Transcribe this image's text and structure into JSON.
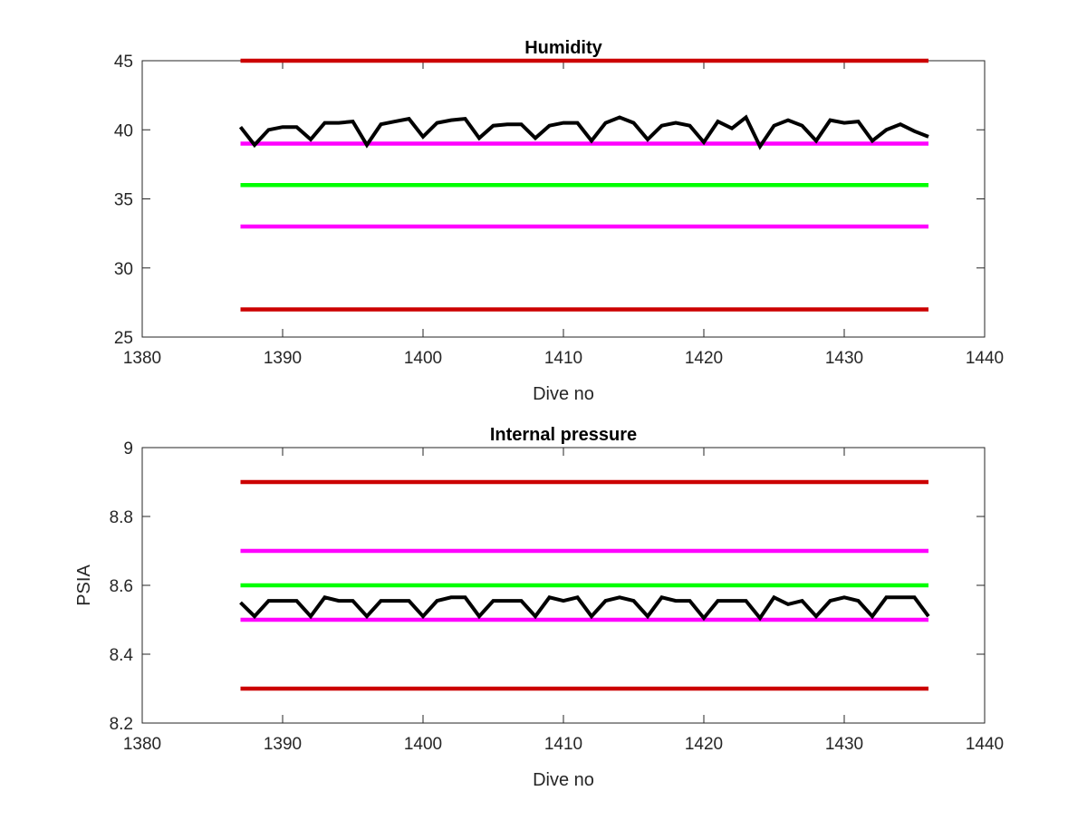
{
  "chart_data": [
    {
      "type": "line",
      "title": "Humidity",
      "xlabel": "Dive no",
      "ylabel": "",
      "xlim": [
        1380,
        1440
      ],
      "ylim": [
        25,
        45
      ],
      "xticks": [
        1380,
        1390,
        1400,
        1410,
        1420,
        1430,
        1440
      ],
      "yticks": [
        25,
        30,
        35,
        40,
        45
      ],
      "grid": false,
      "legend": "none",
      "series": [
        {
          "color": "#cc0000",
          "x": [
            1387,
            1436
          ],
          "y": [
            45,
            45
          ]
        },
        {
          "color": "#ff00ff",
          "x": [
            1387,
            1436
          ],
          "y": [
            39,
            39
          ]
        },
        {
          "color": "#00ff00",
          "x": [
            1387,
            1436
          ],
          "y": [
            36,
            36
          ]
        },
        {
          "color": "#ff00ff",
          "x": [
            1387,
            1436
          ],
          "y": [
            33,
            33
          ]
        },
        {
          "color": "#cc0000",
          "x": [
            1387,
            1436
          ],
          "y": [
            27,
            27
          ]
        },
        {
          "color": "#000000",
          "x": [
            1387,
            1388,
            1389,
            1390,
            1391,
            1392,
            1393,
            1394,
            1395,
            1396,
            1397,
            1398,
            1399,
            1400,
            1401,
            1402,
            1403,
            1404,
            1405,
            1406,
            1407,
            1408,
            1409,
            1410,
            1411,
            1412,
            1413,
            1414,
            1415,
            1416,
            1417,
            1418,
            1419,
            1420,
            1421,
            1422,
            1423,
            1424,
            1425,
            1426,
            1427,
            1428,
            1429,
            1430,
            1431,
            1432,
            1433,
            1434,
            1435,
            1436
          ],
          "y": [
            40.2,
            38.9,
            40.0,
            40.2,
            40.2,
            39.3,
            40.5,
            40.5,
            40.6,
            38.9,
            40.4,
            40.6,
            40.8,
            39.5,
            40.5,
            40.7,
            40.8,
            39.4,
            40.3,
            40.4,
            40.4,
            39.4,
            40.3,
            40.5,
            40.5,
            39.2,
            40.5,
            40.9,
            40.5,
            39.3,
            40.3,
            40.5,
            40.3,
            39.1,
            40.6,
            40.1,
            40.9,
            38.8,
            40.3,
            40.7,
            40.3,
            39.2,
            40.7,
            40.5,
            40.6,
            39.2,
            40.0,
            40.4,
            39.9,
            39.5
          ]
        }
      ]
    },
    {
      "type": "line",
      "title": "Internal pressure",
      "xlabel": "Dive no",
      "ylabel": "PSIA",
      "xlim": [
        1380,
        1440
      ],
      "ylim": [
        8.2,
        9
      ],
      "xticks": [
        1380,
        1390,
        1400,
        1410,
        1420,
        1430,
        1440
      ],
      "yticks": [
        8.2,
        8.4,
        8.6,
        8.8,
        9
      ],
      "grid": false,
      "legend": "none",
      "series": [
        {
          "color": "#cc0000",
          "x": [
            1387,
            1436
          ],
          "y": [
            8.9,
            8.9
          ]
        },
        {
          "color": "#ff00ff",
          "x": [
            1387,
            1436
          ],
          "y": [
            8.7,
            8.7
          ]
        },
        {
          "color": "#00ff00",
          "x": [
            1387,
            1436
          ],
          "y": [
            8.6,
            8.6
          ]
        },
        {
          "color": "#ff00ff",
          "x": [
            1387,
            1436
          ],
          "y": [
            8.5,
            8.5
          ]
        },
        {
          "color": "#cc0000",
          "x": [
            1387,
            1436
          ],
          "y": [
            8.3,
            8.3
          ]
        },
        {
          "color": "#000000",
          "x": [
            1387,
            1388,
            1389,
            1390,
            1391,
            1392,
            1393,
            1394,
            1395,
            1396,
            1397,
            1398,
            1399,
            1400,
            1401,
            1402,
            1403,
            1404,
            1405,
            1406,
            1407,
            1408,
            1409,
            1410,
            1411,
            1412,
            1413,
            1414,
            1415,
            1416,
            1417,
            1418,
            1419,
            1420,
            1421,
            1422,
            1423,
            1424,
            1425,
            1426,
            1427,
            1428,
            1429,
            1430,
            1431,
            1432,
            1433,
            1434,
            1435,
            1436
          ],
          "y": [
            8.55,
            8.51,
            8.555,
            8.555,
            8.555,
            8.51,
            8.565,
            8.555,
            8.555,
            8.51,
            8.555,
            8.555,
            8.555,
            8.51,
            8.555,
            8.565,
            8.565,
            8.51,
            8.555,
            8.555,
            8.555,
            8.51,
            8.565,
            8.555,
            8.565,
            8.51,
            8.555,
            8.565,
            8.555,
            8.51,
            8.565,
            8.555,
            8.555,
            8.505,
            8.555,
            8.555,
            8.555,
            8.505,
            8.565,
            8.545,
            8.555,
            8.51,
            8.555,
            8.565,
            8.555,
            8.51,
            8.565,
            8.565,
            8.565,
            8.51
          ]
        }
      ]
    }
  ]
}
